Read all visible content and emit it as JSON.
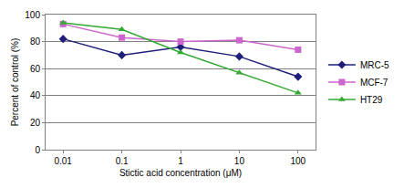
{
  "chart_data": {
    "type": "line",
    "x_label": "Stictic acid concentration (μM)",
    "y_label": "Percent of control (%)",
    "categories": [
      "0.01",
      "0.1",
      "1",
      "10",
      "100"
    ],
    "series": [
      {
        "name": "MRC-5",
        "color": "#1f1f7a",
        "marker": "diamond",
        "values": [
          82,
          70,
          76,
          69,
          54
        ]
      },
      {
        "name": "MCF-7",
        "color": "#cc66cc",
        "marker": "square",
        "values": [
          93,
          83,
          80,
          81,
          74
        ]
      },
      {
        "name": "HT29",
        "color": "#33aa33",
        "marker": "triangle-up",
        "values": [
          94,
          89,
          72,
          57,
          42
        ]
      }
    ],
    "ylim": [
      0,
      100
    ],
    "yticks": [
      0,
      20,
      40,
      60,
      80,
      100
    ],
    "grid": true,
    "legend": "right"
  }
}
